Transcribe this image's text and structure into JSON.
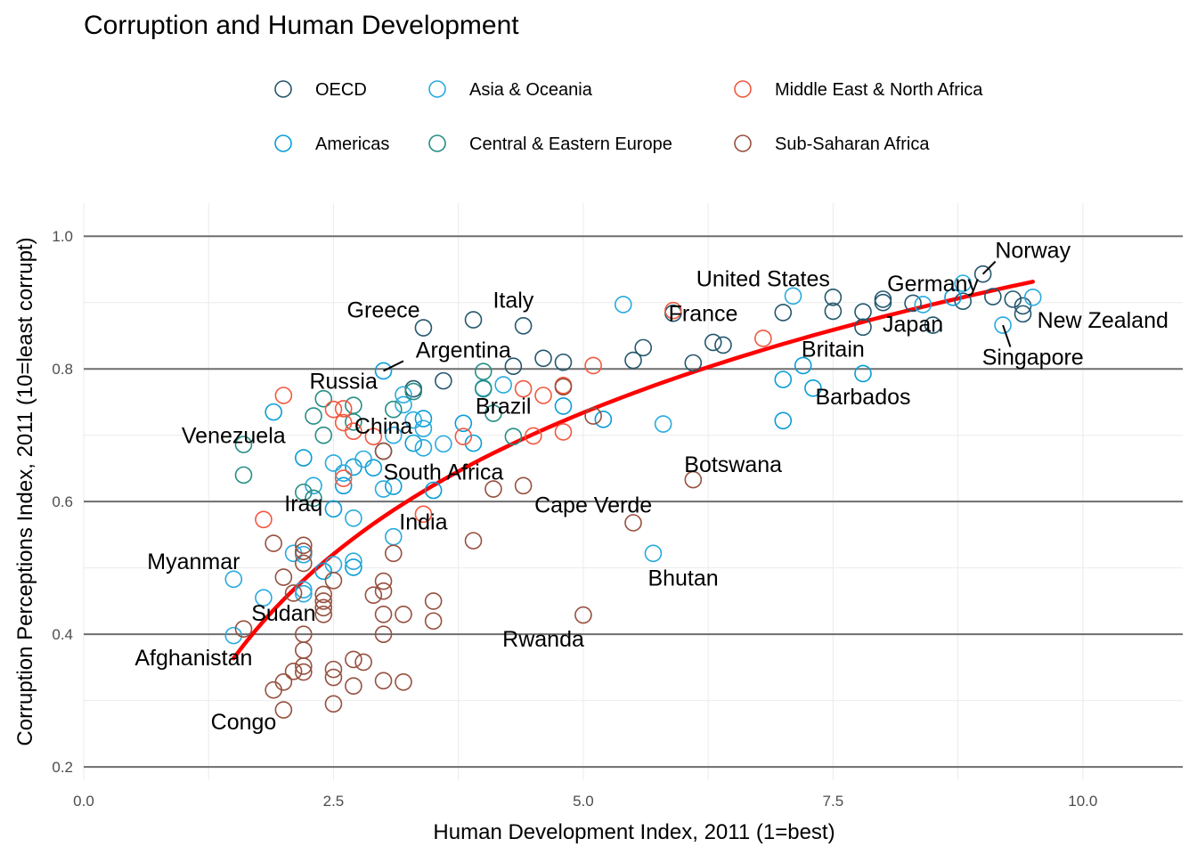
{
  "chart_data": {
    "type": "scatter",
    "title": "Corruption and Human Development",
    "xlabel": "Human Development Index, 2011 (1=best)",
    "ylabel": "Corruption Perceptions Index, 2011 (10=least corrupt)",
    "xlim": [
      0,
      11
    ],
    "ylim": [
      0.18,
      1.05
    ],
    "x_ticks": [
      0,
      2.5,
      5,
      7.5,
      10
    ],
    "x_tick_labels": [
      "0.0",
      "2.5",
      "5.0",
      "7.5",
      "10.0"
    ],
    "y_ticks": [
      0.2,
      0.4,
      0.6,
      0.8,
      1.0
    ],
    "y_tick_labels": [
      "0.2",
      "0.4",
      "0.6",
      "0.8",
      "1.0"
    ],
    "grid": true,
    "legend_position": "top",
    "trend_line": {
      "type": "logarithmic fit",
      "color": "#ff0000",
      "x_range": [
        1.5,
        9.5
      ]
    },
    "regions": [
      {
        "name": "OECD",
        "color": "#24576d"
      },
      {
        "name": "Americas",
        "color": "#099dd7"
      },
      {
        "name": "Asia & Oceania",
        "color": "#28aade"
      },
      {
        "name": "Central & Eastern Europe",
        "color": "#248e84"
      },
      {
        "name": "Middle East & North Africa",
        "color": "#f2583f"
      },
      {
        "name": "Sub-Saharan Africa",
        "color": "#96503f"
      }
    ],
    "series": [
      {
        "name": "OECD",
        "points": [
          [
            9.0,
            0.943
          ],
          [
            9.3,
            0.905
          ],
          [
            9.4,
            0.895
          ],
          [
            9.4,
            0.883
          ],
          [
            9.1,
            0.909
          ],
          [
            8.8,
            0.902
          ],
          [
            8.5,
            0.866
          ],
          [
            8.3,
            0.899
          ],
          [
            8.0,
            0.905
          ],
          [
            8.0,
            0.9
          ],
          [
            7.8,
            0.863
          ],
          [
            7.8,
            0.886
          ],
          [
            7.5,
            0.908
          ],
          [
            7.5,
            0.887
          ],
          [
            7.0,
            0.885
          ],
          [
            6.3,
            0.84
          ],
          [
            6.4,
            0.836
          ],
          [
            6.1,
            0.809
          ],
          [
            5.9,
            0.884
          ],
          [
            5.6,
            0.832
          ],
          [
            5.5,
            0.813
          ],
          [
            4.8,
            0.81
          ],
          [
            4.6,
            0.816
          ],
          [
            4.3,
            0.804
          ],
          [
            4.4,
            0.865
          ],
          [
            3.9,
            0.874
          ],
          [
            3.6,
            0.782
          ],
          [
            3.4,
            0.862
          ],
          [
            3.3,
            0.77
          ]
        ]
      },
      {
        "name": "Americas",
        "points": [
          [
            8.7,
            0.908
          ],
          [
            7.0,
            0.784
          ],
          [
            7.2,
            0.805
          ],
          [
            7.3,
            0.771
          ],
          [
            7.0,
            0.722
          ],
          [
            7.8,
            0.793
          ],
          [
            5.2,
            0.724
          ],
          [
            4.8,
            0.744
          ],
          [
            3.8,
            0.718
          ],
          [
            3.9,
            0.688
          ],
          [
            3.0,
            0.797
          ],
          [
            3.4,
            0.725
          ],
          [
            3.5,
            0.617
          ],
          [
            3.1,
            0.623
          ],
          [
            2.9,
            0.651
          ],
          [
            2.7,
            0.652
          ],
          [
            2.6,
            0.624
          ],
          [
            2.5,
            0.589
          ],
          [
            2.2,
            0.666
          ],
          [
            1.9,
            0.735
          ],
          [
            3.3,
            0.688
          ],
          [
            2.4,
            0.495
          ],
          [
            2.7,
            0.501
          ]
        ]
      },
      {
        "name": "Asia & Oceania",
        "points": [
          [
            9.5,
            0.908
          ],
          [
            9.2,
            0.866
          ],
          [
            8.4,
            0.897
          ],
          [
            8.8,
            0.929
          ],
          [
            7.1,
            0.91
          ],
          [
            5.4,
            0.897
          ],
          [
            5.8,
            0.717
          ],
          [
            5.7,
            0.522
          ],
          [
            4.2,
            0.776
          ],
          [
            4.0,
            0.771
          ],
          [
            3.6,
            0.687
          ],
          [
            3.4,
            0.681
          ],
          [
            3.2,
            0.746
          ],
          [
            3.3,
            0.723
          ],
          [
            3.1,
            0.7
          ],
          [
            3.0,
            0.619
          ],
          [
            2.8,
            0.664
          ],
          [
            2.6,
            0.643
          ],
          [
            2.5,
            0.658
          ],
          [
            2.3,
            0.624
          ],
          [
            2.2,
            0.52
          ],
          [
            2.2,
            0.461
          ],
          [
            2.7,
            0.575
          ],
          [
            1.5,
            0.398
          ],
          [
            1.5,
            0.483
          ],
          [
            1.8,
            0.455
          ],
          [
            2.1,
            0.522
          ],
          [
            2.2,
            0.467
          ],
          [
            3.1,
            0.547
          ],
          [
            2.7,
            0.51
          ],
          [
            2.5,
            0.505
          ],
          [
            3.4,
            0.71
          ],
          [
            3.2,
            0.761
          ]
        ]
      },
      {
        "name": "Central & Eastern Europe",
        "points": [
          [
            4.0,
            0.796
          ],
          [
            4.0,
            0.77
          ],
          [
            4.1,
            0.733
          ],
          [
            4.3,
            0.698
          ],
          [
            3.3,
            0.766
          ],
          [
            3.1,
            0.739
          ],
          [
            2.7,
            0.745
          ],
          [
            2.7,
            0.72
          ],
          [
            2.4,
            0.755
          ],
          [
            2.3,
            0.729
          ],
          [
            2.4,
            0.7
          ],
          [
            2.2,
            0.614
          ],
          [
            2.3,
            0.605
          ],
          [
            1.6,
            0.686
          ],
          [
            1.6,
            0.64
          ],
          [
            3.0,
            0.676
          ]
        ]
      },
      {
        "name": "Middle East & North Africa",
        "points": [
          [
            5.9,
            0.888
          ],
          [
            6.8,
            0.846
          ],
          [
            5.1,
            0.805
          ],
          [
            4.8,
            0.775
          ],
          [
            4.8,
            0.705
          ],
          [
            4.5,
            0.699
          ],
          [
            4.4,
            0.77
          ],
          [
            4.6,
            0.76
          ],
          [
            3.8,
            0.698
          ],
          [
            2.9,
            0.698
          ],
          [
            2.7,
            0.706
          ],
          [
            2.6,
            0.74
          ],
          [
            2.5,
            0.739
          ],
          [
            2.6,
            0.719
          ],
          [
            2.0,
            0.76
          ],
          [
            1.8,
            0.573
          ],
          [
            3.4,
            0.581
          ],
          [
            2.6,
            0.635
          ]
        ]
      },
      {
        "name": "Sub-Saharan Africa",
        "points": [
          [
            4.8,
            0.773
          ],
          [
            5.1,
            0.729
          ],
          [
            6.1,
            0.633
          ],
          [
            5.5,
            0.568
          ],
          [
            4.1,
            0.619
          ],
          [
            4.4,
            0.624
          ],
          [
            3.9,
            0.541
          ],
          [
            5.0,
            0.429
          ],
          [
            3.1,
            0.522
          ],
          [
            3.5,
            0.45
          ],
          [
            3.5,
            0.42
          ],
          [
            3.2,
            0.43
          ],
          [
            3.0,
            0.48
          ],
          [
            3.0,
            0.465
          ],
          [
            3.0,
            0.43
          ],
          [
            3.0,
            0.4
          ],
          [
            2.9,
            0.459
          ],
          [
            3.0,
            0.33
          ],
          [
            3.2,
            0.328
          ],
          [
            2.8,
            0.358
          ],
          [
            2.7,
            0.362
          ],
          [
            2.7,
            0.322
          ],
          [
            2.5,
            0.481
          ],
          [
            2.4,
            0.46
          ],
          [
            2.4,
            0.45
          ],
          [
            2.4,
            0.44
          ],
          [
            2.4,
            0.43
          ],
          [
            2.5,
            0.347
          ],
          [
            2.5,
            0.335
          ],
          [
            2.5,
            0.295
          ],
          [
            2.2,
            0.534
          ],
          [
            2.2,
            0.525
          ],
          [
            2.2,
            0.507
          ],
          [
            2.2,
            0.4
          ],
          [
            2.2,
            0.376
          ],
          [
            2.2,
            0.352
          ],
          [
            2.2,
            0.343
          ],
          [
            2.1,
            0.462
          ],
          [
            2.0,
            0.486
          ],
          [
            1.9,
            0.537
          ],
          [
            2.1,
            0.344
          ],
          [
            2.0,
            0.328
          ],
          [
            2.0,
            0.286
          ],
          [
            1.9,
            0.316
          ],
          [
            1.6,
            0.408
          ],
          [
            3.0,
            0.676
          ]
        ]
      }
    ],
    "annotations": [
      {
        "text": "Norway",
        "x": 9.0,
        "y": 0.943,
        "label_x": 9.5,
        "label_y": 0.978,
        "leader": true
      },
      {
        "text": "United States",
        "x": 7.1,
        "y": 0.91,
        "label_x": 6.8,
        "label_y": 0.935,
        "leader": false
      },
      {
        "text": "Germany",
        "x": 8.0,
        "y": 0.905,
        "label_x": 8.5,
        "label_y": 0.928,
        "leader": false
      },
      {
        "text": "Italy",
        "x": 3.9,
        "y": 0.874,
        "label_x": 4.3,
        "label_y": 0.903,
        "leader": false
      },
      {
        "text": "Greece",
        "x": 3.4,
        "y": 0.862,
        "label_x": 3.0,
        "label_y": 0.888,
        "leader": false
      },
      {
        "text": "France",
        "x": 5.9,
        "y": 0.884,
        "label_x": 6.2,
        "label_y": 0.883,
        "leader": false
      },
      {
        "text": "Japan",
        "x": 8.3,
        "y": 0.899,
        "label_x": 8.3,
        "label_y": 0.867,
        "leader": false
      },
      {
        "text": "New Zealand",
        "x": 9.4,
        "y": 0.895,
        "label_x": 10.2,
        "label_y": 0.873,
        "leader": false
      },
      {
        "text": "Argentina",
        "x": 3.0,
        "y": 0.797,
        "label_x": 3.8,
        "label_y": 0.828,
        "leader": true
      },
      {
        "text": "Britain",
        "x": 7.3,
        "y": 0.845,
        "label_x": 7.5,
        "label_y": 0.829,
        "leader": false
      },
      {
        "text": "Singapore",
        "x": 9.2,
        "y": 0.866,
        "label_x": 9.5,
        "label_y": 0.817,
        "leader": true
      },
      {
        "text": "Russia",
        "x": 2.4,
        "y": 0.755,
        "label_x": 2.6,
        "label_y": 0.781,
        "leader": false
      },
      {
        "text": "Barbados",
        "x": 7.8,
        "y": 0.793,
        "label_x": 7.8,
        "label_y": 0.757,
        "leader": false
      },
      {
        "text": "Brazil",
        "x": 4.1,
        "y": 0.718,
        "label_x": 4.2,
        "label_y": 0.743,
        "leader": false
      },
      {
        "text": "China",
        "x": 3.1,
        "y": 0.7,
        "label_x": 3.0,
        "label_y": 0.713,
        "leader": false
      },
      {
        "text": "Venezuela",
        "x": 1.6,
        "y": 0.686,
        "label_x": 1.5,
        "label_y": 0.699,
        "leader": false
      },
      {
        "text": "Botswana",
        "x": 6.1,
        "y": 0.633,
        "label_x": 6.5,
        "label_y": 0.655,
        "leader": false
      },
      {
        "text": "South Africa",
        "x": 3.0,
        "y": 0.619,
        "label_x": 3.6,
        "label_y": 0.644,
        "leader": false
      },
      {
        "text": "Cape Verde",
        "x": 5.5,
        "y": 0.568,
        "label_x": 5.1,
        "label_y": 0.594,
        "leader": false
      },
      {
        "text": "Iraq",
        "x": 2.1,
        "y": 0.573,
        "label_x": 2.2,
        "label_y": 0.596,
        "leader": false
      },
      {
        "text": "India",
        "x": 3.4,
        "y": 0.581,
        "label_x": 3.4,
        "label_y": 0.569,
        "leader": false
      },
      {
        "text": "Myanmar",
        "x": 1.5,
        "y": 0.483,
        "label_x": 1.1,
        "label_y": 0.509,
        "leader": false
      },
      {
        "text": "Bhutan",
        "x": 5.7,
        "y": 0.522,
        "label_x": 6.0,
        "label_y": 0.484,
        "leader": false
      },
      {
        "text": "Sudan",
        "x": 1.6,
        "y": 0.408,
        "label_x": 2.0,
        "label_y": 0.431,
        "leader": false
      },
      {
        "text": "Rwanda",
        "x": 5.0,
        "y": 0.429,
        "label_x": 4.6,
        "label_y": 0.392,
        "leader": false
      },
      {
        "text": "Afghanistan",
        "x": 1.5,
        "y": 0.398,
        "label_x": 1.1,
        "label_y": 0.364,
        "leader": false
      },
      {
        "text": "Congo",
        "x": 2.0,
        "y": 0.286,
        "label_x": 1.6,
        "label_y": 0.267,
        "leader": false
      }
    ]
  }
}
